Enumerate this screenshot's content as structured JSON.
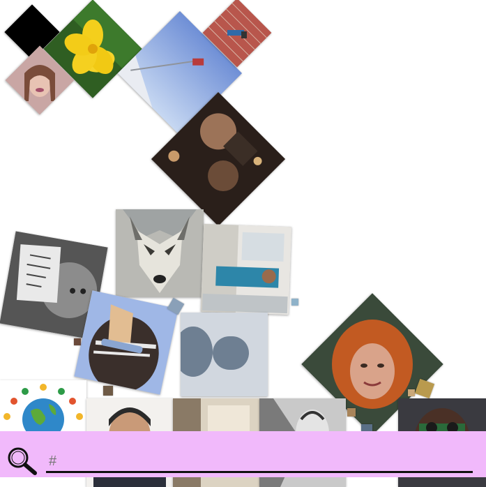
{
  "search": {
    "placeholder": "#",
    "value": ""
  },
  "colors": {
    "search_bar_background": "#f1b9fb",
    "page_background": "#ffffff"
  },
  "avatars": [
    {
      "name": "black-square-avatar"
    },
    {
      "name": "yellow-flower-avatar"
    },
    {
      "name": "girl-selfie-avatar"
    },
    {
      "name": "flag-sky-avatar"
    },
    {
      "name": "brick-wall-avatar"
    },
    {
      "name": "night-selfie-avatar"
    },
    {
      "name": "wolf-avatar"
    },
    {
      "name": "dog-with-sign-avatar"
    },
    {
      "name": "room-person-avatar"
    },
    {
      "name": "cartoon-avatar"
    },
    {
      "name": "default-profile-avatar"
    },
    {
      "name": "redhead-avatar"
    },
    {
      "name": "kids-around-globe-avatar"
    },
    {
      "name": "man-portrait-avatar"
    },
    {
      "name": "office-avatar"
    },
    {
      "name": "bw-drawing-avatar"
    },
    {
      "name": "glasses-man-avatar"
    }
  ],
  "icons": {
    "search": "magnifier"
  }
}
